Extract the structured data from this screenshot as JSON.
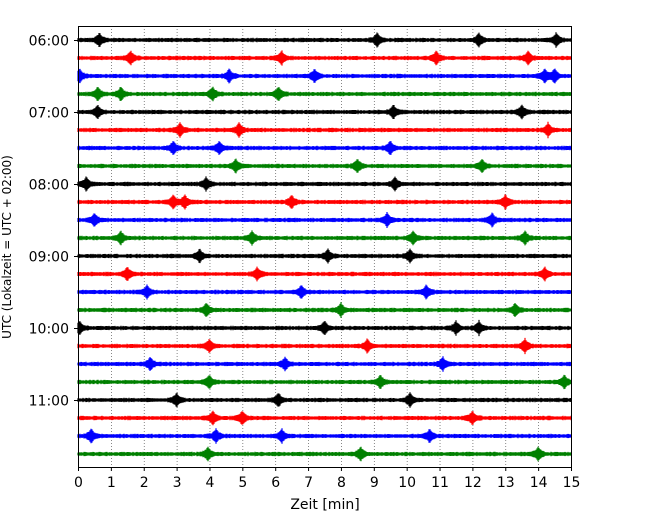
{
  "chart_data": {
    "type": "line",
    "xlabel": "Zeit  [min]",
    "ylabel": "UTC (Lokalzeit = UTC + 02:00)",
    "xlim": [
      0,
      15
    ],
    "x_ticks": [
      "0",
      "1",
      "2",
      "3",
      "4",
      "5",
      "6",
      "7",
      "8",
      "9",
      "10",
      "11",
      "12",
      "13",
      "14",
      "15"
    ],
    "y_ticks": [
      "06:00",
      "07:00",
      "08:00",
      "09:00",
      "10:00",
      "11:00"
    ],
    "grid": "vertical dotted",
    "row_interval_min": 15,
    "colors": [
      "#000000",
      "#ff0000",
      "#0000ff",
      "#008000"
    ],
    "rows": [
      {
        "time": "06:00",
        "color": "#000000",
        "events": [
          0.65,
          9.1,
          12.2,
          14.55
        ]
      },
      {
        "time": "06:15",
        "color": "#ff0000",
        "events": [
          1.6,
          6.2,
          10.9,
          13.7
        ]
      },
      {
        "time": "06:30",
        "color": "#0000ff",
        "events": [
          0.05,
          4.6,
          7.2,
          14.2,
          14.5
        ]
      },
      {
        "time": "06:45",
        "color": "#008000",
        "events": [
          0.6,
          1.3,
          4.1,
          6.1
        ]
      },
      {
        "time": "07:00",
        "color": "#000000",
        "events": [
          0.6,
          9.6,
          13.5
        ]
      },
      {
        "time": "07:15",
        "color": "#ff0000",
        "events": [
          3.1,
          4.9,
          14.3
        ]
      },
      {
        "time": "07:30",
        "color": "#0000ff",
        "events": [
          2.9,
          4.3,
          9.5
        ]
      },
      {
        "time": "07:45",
        "color": "#008000",
        "events": [
          4.8,
          8.5,
          12.3
        ]
      },
      {
        "time": "08:00",
        "color": "#000000",
        "events": [
          0.25,
          3.9,
          9.65
        ]
      },
      {
        "time": "08:15",
        "color": "#ff0000",
        "events": [
          2.9,
          3.25,
          6.5,
          13.0
        ]
      },
      {
        "time": "08:30",
        "color": "#0000ff",
        "events": [
          0.5,
          9.4,
          12.6
        ]
      },
      {
        "time": "08:45",
        "color": "#008000",
        "events": [
          1.3,
          5.3,
          10.2,
          13.6
        ]
      },
      {
        "time": "09:00",
        "color": "#000000",
        "events": [
          3.7,
          7.6,
          10.1
        ]
      },
      {
        "time": "09:15",
        "color": "#ff0000",
        "events": [
          1.5,
          5.45,
          14.2
        ]
      },
      {
        "time": "09:30",
        "color": "#0000ff",
        "events": [
          2.1,
          6.8,
          10.6
        ]
      },
      {
        "time": "09:45",
        "color": "#008000",
        "events": [
          3.9,
          8.0,
          13.3
        ]
      },
      {
        "time": "10:00",
        "color": "#000000",
        "events": [
          0.05,
          7.5,
          11.5,
          12.2
        ]
      },
      {
        "time": "10:15",
        "color": "#ff0000",
        "events": [
          4.0,
          8.8,
          13.6
        ]
      },
      {
        "time": "10:30",
        "color": "#0000ff",
        "events": [
          2.2,
          6.3,
          11.1
        ]
      },
      {
        "time": "10:45",
        "color": "#008000",
        "events": [
          4.0,
          9.2,
          14.8
        ]
      },
      {
        "time": "11:00",
        "color": "#000000",
        "events": [
          3.0,
          6.1,
          10.1
        ]
      },
      {
        "time": "11:15",
        "color": "#ff0000",
        "events": [
          4.1,
          5.0,
          12.0
        ]
      },
      {
        "time": "11:30",
        "color": "#0000ff",
        "events": [
          0.4,
          4.2,
          6.2,
          10.7
        ]
      },
      {
        "time": "11:45",
        "color": "#008000",
        "events": [
          3.95,
          8.6,
          14.0
        ]
      }
    ]
  }
}
